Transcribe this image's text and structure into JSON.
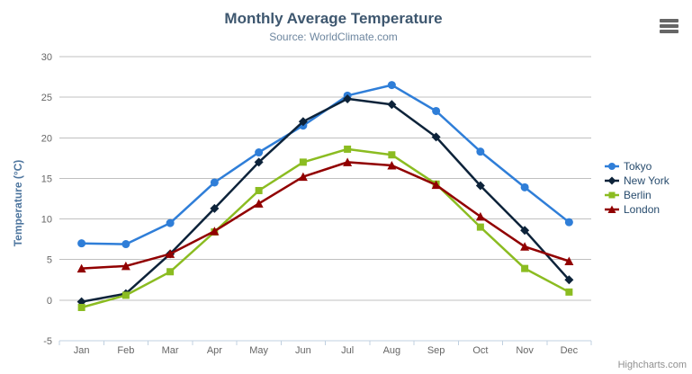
{
  "credits": {
    "label": "Highcharts.com"
  },
  "menu": {
    "tooltip": "Chart context menu"
  },
  "colors": {
    "grid": "#c0c0c0",
    "axis_line": "#c0d0e0",
    "title": "#3e576f",
    "subtitle": "#6d869f",
    "axis_labels": "#666666",
    "y_axis_title": "#4d759e",
    "legend_text": "#274b6d",
    "credits_text": "#909090",
    "menu_icon": "#666666"
  },
  "chart_data": {
    "type": "line",
    "title": "Monthly Average Temperature",
    "subtitle": "Source: WorldClimate.com",
    "xlabel": "",
    "ylabel": "Temperature (°C)",
    "ylim": [
      -5,
      30
    ],
    "yticks": [
      -5,
      0,
      5,
      10,
      15,
      20,
      25,
      30
    ],
    "grid": true,
    "legend_position": "right",
    "categories": [
      "Jan",
      "Feb",
      "Mar",
      "Apr",
      "May",
      "Jun",
      "Jul",
      "Aug",
      "Sep",
      "Oct",
      "Nov",
      "Dec"
    ],
    "series": [
      {
        "name": "Tokyo",
        "color": "#2f7ed8",
        "marker": "circle",
        "values": [
          7.0,
          6.9,
          9.5,
          14.5,
          18.2,
          21.5,
          25.2,
          26.5,
          23.3,
          18.3,
          13.9,
          9.6
        ]
      },
      {
        "name": "New York",
        "color": "#0d233a",
        "marker": "diamond",
        "values": [
          -0.2,
          0.8,
          5.7,
          11.3,
          17.0,
          22.0,
          24.8,
          24.1,
          20.1,
          14.1,
          8.6,
          2.5
        ]
      },
      {
        "name": "Berlin",
        "color": "#8bbc21",
        "marker": "square",
        "values": [
          -0.9,
          0.6,
          3.5,
          8.4,
          13.5,
          17.0,
          18.6,
          17.9,
          14.3,
          9.0,
          3.9,
          1.0
        ]
      },
      {
        "name": "London",
        "color": "#910000",
        "marker": "triangle",
        "values": [
          3.9,
          4.2,
          5.7,
          8.5,
          11.9,
          15.2,
          17.0,
          16.6,
          14.2,
          10.3,
          6.6,
          4.8
        ]
      }
    ]
  }
}
